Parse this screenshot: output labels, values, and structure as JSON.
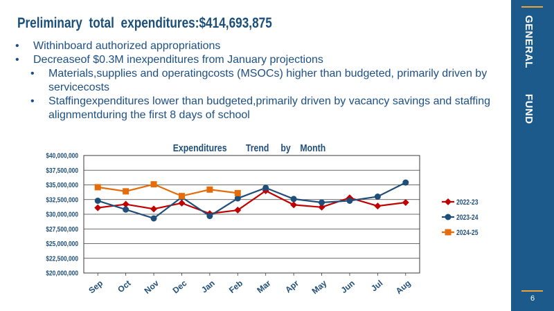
{
  "slide": {
    "title": "Preliminary      total    expenditures:$414,693,875",
    "bullets": [
      {
        "level": 1,
        "text": "Withinboard authorized appropriations"
      },
      {
        "level": 1,
        "text": "Decreaseof $0.3M inexpenditures  from January projections"
      },
      {
        "level": 2,
        "text": "Materials,supplies and operatingcosts (MSOCs) higher than budgeted, primarily driven by servicecosts"
      },
      {
        "level": 2,
        "text": "Staffingexpenditures  lower than budgeted,primarily driven by vacancy savings and staffing alignmentduring the first 8 days of school"
      }
    ],
    "sidebar_label": "GENERAL        FUND",
    "page_number": "6"
  },
  "chart_data": {
    "type": "line",
    "title": "Expenditures        Trend     by    Month",
    "categories": [
      "Sep",
      "Oct",
      "Nov",
      "Dec",
      "Jan",
      "Feb",
      "Mar",
      "Apr",
      "May",
      "Jun",
      "Jul",
      "Aug"
    ],
    "ylim": [
      20000000,
      40000000
    ],
    "yticks": [
      "$20,000,000",
      "$22,500,000",
      "$25,000,000",
      "$27,500,000",
      "$30,000,000",
      "$32,500,000",
      "$35,000,000",
      "$37,500,000",
      "$40,000,000"
    ],
    "ytick_values": [
      20000000,
      22500000,
      25000000,
      27500000,
      30000000,
      32500000,
      35000000,
      37500000,
      40000000
    ],
    "grid": true,
    "legend_position": "right",
    "series": [
      {
        "name": "2022-23",
        "color": "#c00000",
        "marker": "diamond",
        "values": [
          31100000,
          31700000,
          30900000,
          31900000,
          30100000,
          30700000,
          34000000,
          31600000,
          31200000,
          32800000,
          31400000,
          32000000
        ]
      },
      {
        "name": "2023-24",
        "color": "#1f4e79",
        "marker": "circle",
        "values": [
          32300000,
          30800000,
          29300000,
          32900000,
          29700000,
          32700000,
          34500000,
          32600000,
          32000000,
          32300000,
          33000000,
          35400000
        ]
      },
      {
        "name": "2024-25",
        "color": "#e46c0a",
        "marker": "square",
        "values": [
          34600000,
          33900000,
          35100000,
          33100000,
          34200000,
          33600000,
          null,
          null,
          null,
          null,
          null,
          null
        ]
      }
    ]
  }
}
